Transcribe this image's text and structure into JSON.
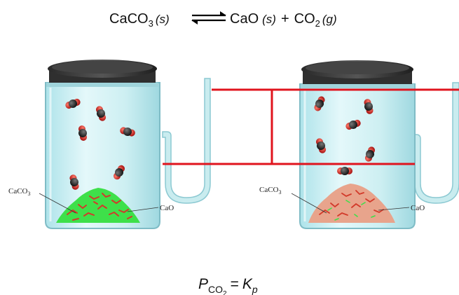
{
  "equation": {
    "reactant_formula": "CaCO",
    "reactant_sub": "3",
    "reactant_state": "(s)",
    "product1_formula": "CaO",
    "product1_state": "(s)",
    "plus": "+",
    "product2_formula": "CO",
    "product2_sub": "2",
    "product2_state": "(g)"
  },
  "labels": {
    "left_solid": "CaCO",
    "left_solid_sub": "3",
    "left_product": "CaO",
    "right_solid": "CaCO",
    "right_solid_sub": "3",
    "right_product": "CaO"
  },
  "expression": {
    "p_symbol": "P",
    "p_sub": "CO",
    "p_sub_sub": "2",
    "equals": "=",
    "k_symbol": "K",
    "k_sub": "p"
  },
  "colors": {
    "glass": "#cdeff2",
    "lid": "#3a3a3a",
    "level_line": "#e0141e",
    "left_solid_color": "#3ee04a",
    "right_solid_color": "#e8a48c",
    "caco3_speck": "#d23a2a",
    "co2_carbon": "#222222",
    "co2_oxygen": "#cc1a1a"
  }
}
